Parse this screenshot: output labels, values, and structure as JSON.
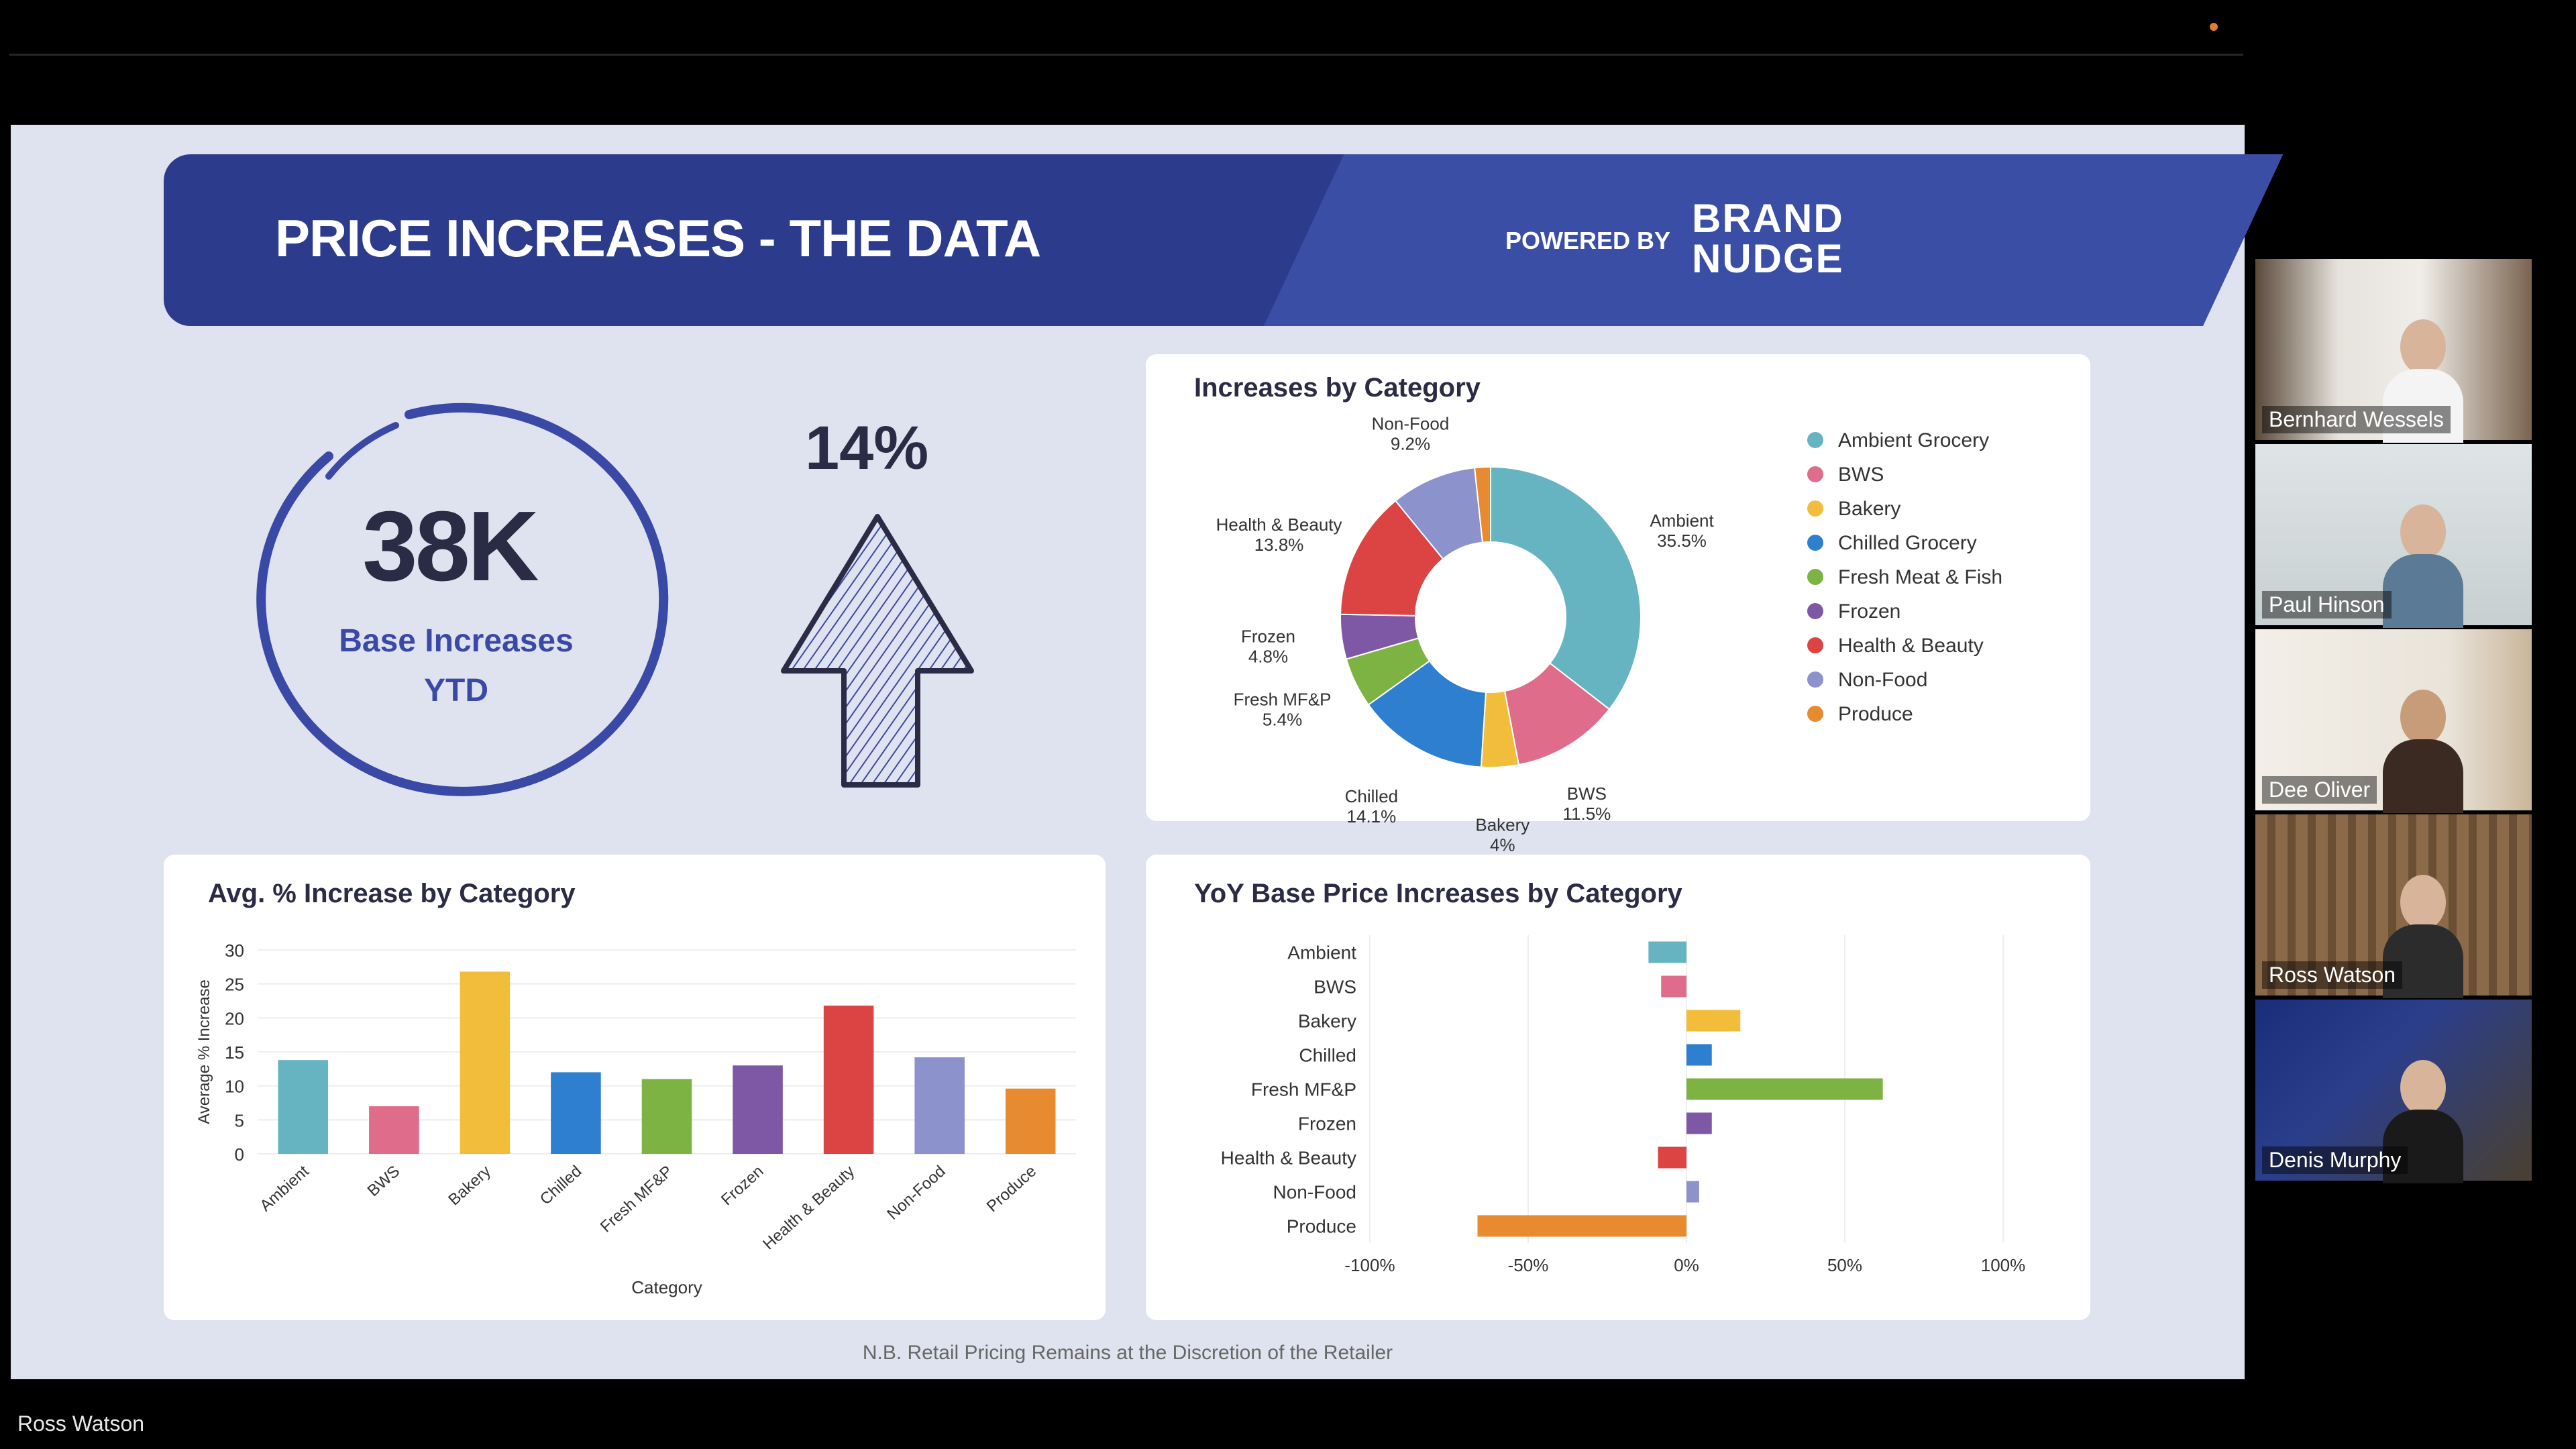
{
  "slide": {
    "title": "PRICE INCREASES - THE DATA",
    "powered_by": "POWERED BY",
    "brand_line1": "BRAND",
    "brand_line2": "NUDGE",
    "kpi_value": "38K",
    "kpi_label_line1": "Base Increases",
    "kpi_label_line2": "YTD",
    "pct_value": "14%",
    "footer_note": "N.B. Retail Pricing Remains at the Discretion of the Retailer"
  },
  "speaker_label": "Ross Watson",
  "participants": [
    {
      "name": "Bernhard Wessels"
    },
    {
      "name": "Paul Hinson"
    },
    {
      "name": "Dee Oliver"
    },
    {
      "name": "Ross Watson"
    },
    {
      "name": "Denis Murphy"
    }
  ],
  "colors": {
    "ambient": "#66b3c2",
    "bws": "#e06c8c",
    "bakery": "#f2bd3a",
    "chilled": "#2e7fcf",
    "fresh": "#7cb342",
    "frozen": "#7e57a5",
    "health": "#dc4444",
    "nonfood": "#8c92cc",
    "produce": "#e88a30"
  },
  "chart_data": [
    {
      "type": "pie",
      "title": "Increases by Category",
      "legend": [
        "Ambient Grocery",
        "BWS",
        "Bakery",
        "Chilled Grocery",
        "Fresh Meat & Fish",
        "Frozen",
        "Health & Beauty",
        "Non-Food",
        "Produce"
      ],
      "legend_position": "right",
      "slices": [
        {
          "label": "Ambient",
          "pct_label": "35.5%",
          "value": 35.5,
          "color_key": "ambient"
        },
        {
          "label": "BWS",
          "pct_label": "11.5%",
          "value": 11.5,
          "color_key": "bws"
        },
        {
          "label": "Bakery",
          "pct_label": "4%",
          "value": 4,
          "color_key": "bakery"
        },
        {
          "label": "Chilled",
          "pct_label": "14.1%",
          "value": 14.1,
          "color_key": "chilled"
        },
        {
          "label": "Fresh MF&P",
          "pct_label": "5.4%",
          "value": 5.4,
          "color_key": "fresh"
        },
        {
          "label": "Frozen",
          "pct_label": "4.8%",
          "value": 4.8,
          "color_key": "frozen"
        },
        {
          "label": "Health & Beauty",
          "pct_label": "13.8%",
          "value": 13.8,
          "color_key": "health"
        },
        {
          "label": "Non-Food",
          "pct_label": "9.2%",
          "value": 9.2,
          "color_key": "nonfood"
        },
        {
          "label": "",
          "pct_label": "",
          "value": 1.7,
          "color_key": "produce"
        }
      ]
    },
    {
      "type": "bar",
      "title": "Avg. % Increase by Category",
      "xlabel": "Category",
      "ylabel": "Average % Increase",
      "ylim": [
        0,
        30
      ],
      "yticks": [
        "0",
        "5",
        "10",
        "15",
        "20",
        "25",
        "30"
      ],
      "categories": [
        "Ambient",
        "BWS",
        "Bakery",
        "Chilled",
        "Fresh MF&P",
        "Frozen",
        "Health & Beauty",
        "Non-Food",
        "Produce"
      ],
      "values": [
        13.8,
        7,
        26.8,
        12,
        11,
        13,
        21.8,
        14.2,
        9.6
      ],
      "color_keys": [
        "ambient",
        "bws",
        "bakery",
        "chilled",
        "fresh",
        "frozen",
        "health",
        "nonfood",
        "produce"
      ]
    },
    {
      "type": "bar",
      "orientation": "horizontal",
      "title": "YoY Base Price Increases by Category",
      "xlim": [
        -100,
        100
      ],
      "xticks": [
        "-100%",
        "-50%",
        "0%",
        "50%",
        "100%"
      ],
      "categories": [
        "Ambient",
        "BWS",
        "Bakery",
        "Chilled",
        "Fresh MF&P",
        "Frozen",
        "Health & Beauty",
        "Non-Food",
        "Produce"
      ],
      "values": [
        -12,
        -8,
        17,
        8,
        62,
        8,
        -9,
        4,
        -66
      ],
      "color_keys": [
        "ambient",
        "bws",
        "bakery",
        "chilled",
        "fresh",
        "frozen",
        "health",
        "nonfood",
        "produce"
      ]
    }
  ]
}
